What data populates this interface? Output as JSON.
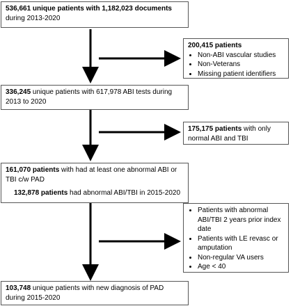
{
  "main_flow": [
    {
      "bold": "536,661 unique patients with 1,182,023 documents",
      "rest": "during 2013-2020"
    },
    {
      "bold": "336,245",
      "rest": " unique patients with 617,978 ABI tests during 2013 to 2020"
    },
    {
      "bold": "161,070 patients",
      "rest": " with had at least one abnormal ABI or TBI c/w PAD",
      "sub_bold": "132,878 patients",
      "sub_rest": " had abnormal ABI/TBI in 2015-2020"
    },
    {
      "bold": "103,748",
      "rest": " unique patients with new diagnosis of PAD during 2015-2020"
    }
  ],
  "exclusions": [
    {
      "title": "200,415 patients",
      "items": [
        "Non-ABI vascular studies",
        "Non-Veterans",
        "Missing patient identifiers"
      ]
    },
    {
      "bold": "175,175 patients",
      "rest": " with only normal ABI and TBI"
    },
    {
      "items": [
        "Patients with abnormal ABI/TBI 2 years prior index date",
        "Patients with LE revasc or amputation",
        "Non-regular VA users",
        "Age < 40"
      ]
    }
  ]
}
